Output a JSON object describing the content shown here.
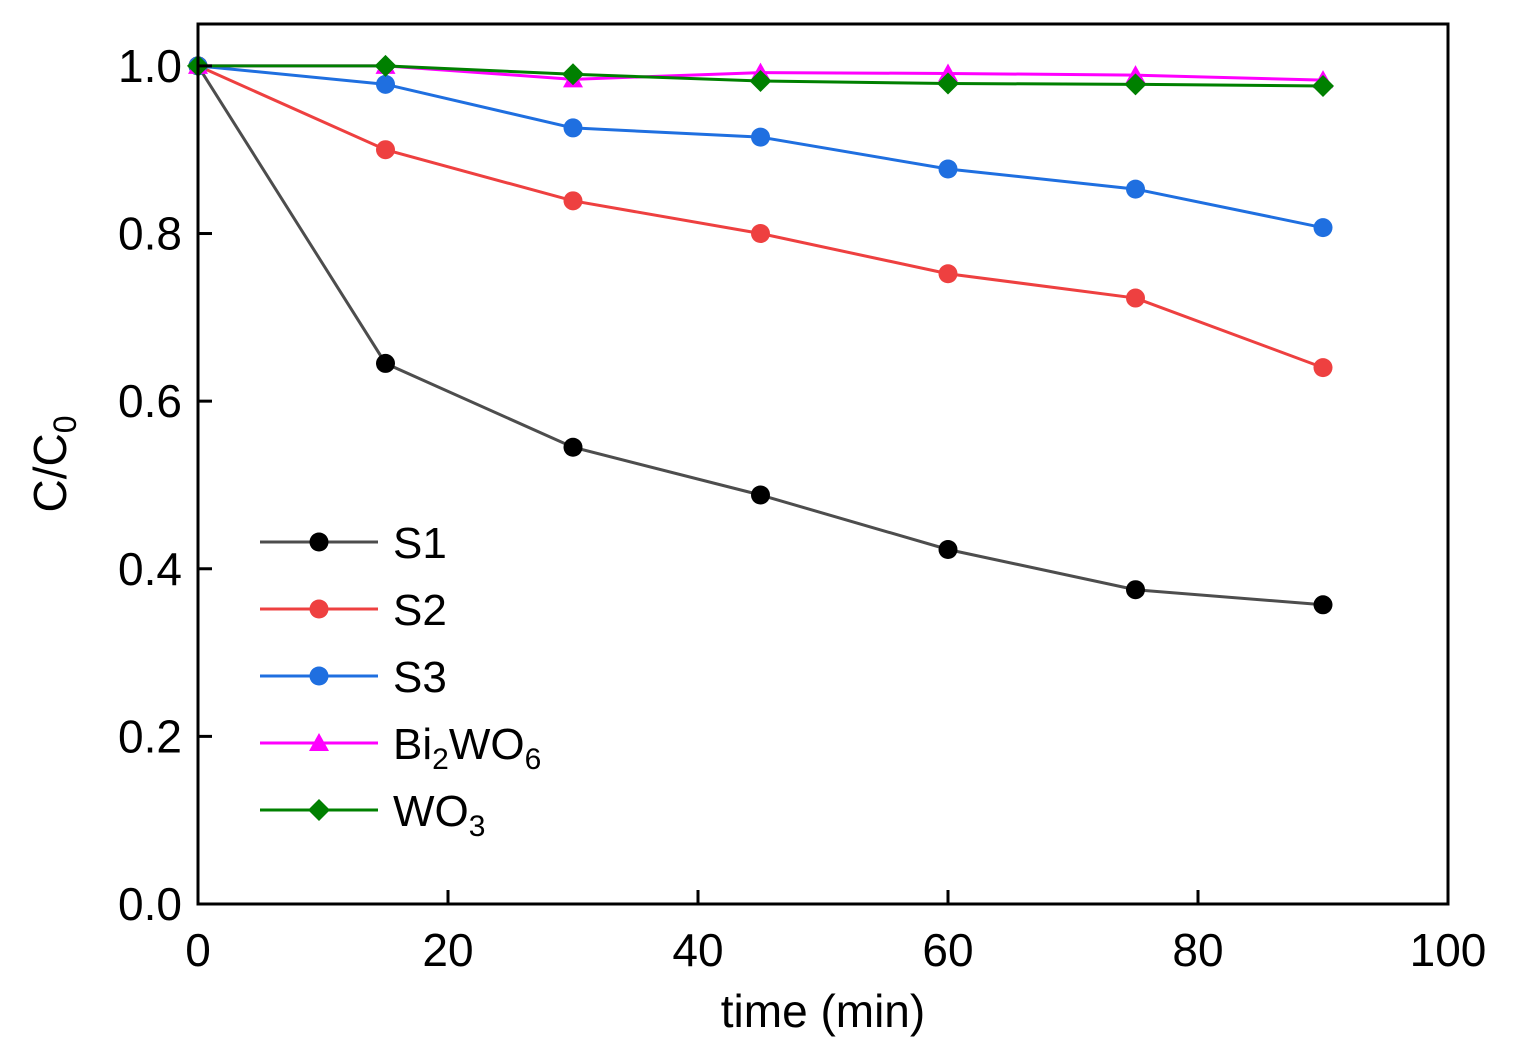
{
  "chart_data": {
    "type": "line",
    "xlabel": "time (min)",
    "ylabel": {
      "main": "C/C",
      "sub": "0"
    },
    "xlim": [
      0,
      100
    ],
    "ylim": [
      0,
      1.05
    ],
    "xticks": [
      0,
      20,
      40,
      60,
      80,
      100
    ],
    "xtick_labels": [
      "0",
      "20",
      "40",
      "60",
      "80",
      "100"
    ],
    "yticks": [
      0.0,
      0.2,
      0.4,
      0.6,
      0.8,
      1.0
    ],
    "ytick_labels": [
      "0.0",
      "0.2",
      "0.4",
      "0.6",
      "0.8",
      "1.0"
    ],
    "grid": false,
    "legend_position": "lower-left",
    "x": [
      0,
      15,
      30,
      45,
      60,
      75,
      90
    ],
    "series": [
      {
        "name": "S1",
        "label_parts": [
          [
            "S1",
            ""
          ]
        ],
        "color": "#4d4d4d",
        "marker_color": "#000000",
        "marker": "circle",
        "values": [
          1.0,
          0.645,
          0.545,
          0.488,
          0.423,
          0.375,
          0.357
        ]
      },
      {
        "name": "S2",
        "label_parts": [
          [
            "S2",
            ""
          ]
        ],
        "color": "#ee4040",
        "marker_color": "#ee4040",
        "marker": "circle",
        "values": [
          1.0,
          0.9,
          0.839,
          0.8,
          0.752,
          0.723,
          0.64
        ]
      },
      {
        "name": "S3",
        "label_parts": [
          [
            "S3",
            ""
          ]
        ],
        "color": "#1f6fe0",
        "marker_color": "#1f6fe0",
        "marker": "circle",
        "values": [
          1.0,
          0.978,
          0.926,
          0.915,
          0.877,
          0.853,
          0.807
        ]
      },
      {
        "name": "Bi2WO6",
        "label_parts": [
          [
            "Bi",
            ""
          ],
          [
            "2",
            "sub"
          ],
          [
            "WO",
            ""
          ],
          [
            "6",
            "sub"
          ]
        ],
        "color": "#ff00ff",
        "marker_color": "#ff00ff",
        "marker": "triangle",
        "values": [
          1.0,
          1.0,
          0.984,
          0.992,
          0.991,
          0.989,
          0.983
        ]
      },
      {
        "name": "WO3",
        "label_parts": [
          [
            "WO",
            ""
          ],
          [
            "3",
            "sub"
          ]
        ],
        "color": "#008000",
        "marker_color": "#008000",
        "marker": "diamond",
        "values": [
          1.0,
          1.0,
          0.99,
          0.982,
          0.979,
          0.978,
          0.976
        ]
      }
    ]
  }
}
